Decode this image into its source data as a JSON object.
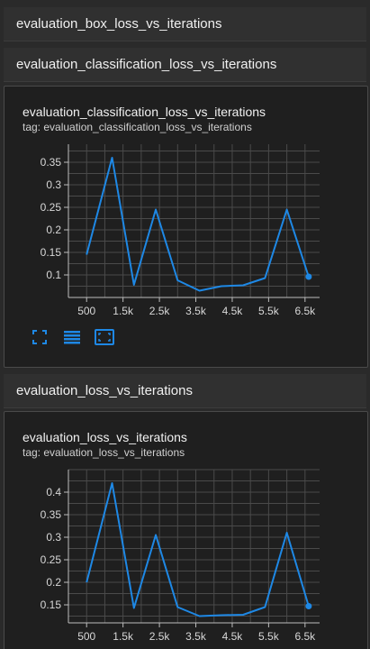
{
  "sections": [
    {
      "label": "evaluation_box_loss_vs_iterations"
    },
    {
      "label": "evaluation_classification_loss_vs_iterations"
    },
    {
      "label": "evaluation_loss_vs_iterations"
    }
  ],
  "cards": [
    {
      "title": "evaluation_classification_loss_vs_iterations",
      "tag": "tag: evaluation_classification_loss_vs_iterations"
    },
    {
      "title": "evaluation_loss_vs_iterations",
      "tag": "tag: evaluation_loss_vs_iterations"
    }
  ],
  "toolbar": {
    "icons": [
      "fullscreen-icon",
      "toggle-log-scale-icon",
      "fit-domain-icon"
    ]
  },
  "colors": {
    "line": "#1e88e5",
    "grid": "#4a4a4a",
    "axis": "#bdbdbd"
  },
  "chart_data": [
    {
      "type": "line",
      "title": "evaluation_classification_loss_vs_iterations",
      "x": [
        500,
        1200,
        1800,
        2400,
        3000,
        3600,
        4200,
        4800,
        5400,
        6000,
        6600
      ],
      "series": [
        {
          "values": [
            0.145,
            0.36,
            0.078,
            0.245,
            0.088,
            0.065,
            0.075,
            0.077,
            0.093,
            0.245,
            0.096
          ]
        }
      ],
      "xlim": [
        0,
        6900
      ],
      "ylim": [
        0.05,
        0.39
      ],
      "xticks": [
        500,
        1500,
        2500,
        3500,
        4500,
        5500,
        6500
      ],
      "xtick_labels": [
        "500",
        "1.5k",
        "2.5k",
        "3.5k",
        "4.5k",
        "5.5k",
        "6.5k"
      ],
      "yticks": [
        0.1,
        0.15,
        0.2,
        0.25,
        0.3,
        0.35
      ],
      "ytick_labels": [
        "0.1",
        "0.15",
        "0.2",
        "0.25",
        "0.3",
        "0.35"
      ],
      "grid": true
    },
    {
      "type": "line",
      "title": "evaluation_loss_vs_iterations",
      "x": [
        500,
        1200,
        1800,
        2400,
        3000,
        3600,
        4200,
        4800,
        5400,
        6000,
        6600
      ],
      "series": [
        {
          "values": [
            0.2,
            0.42,
            0.143,
            0.305,
            0.145,
            0.125,
            0.127,
            0.128,
            0.145,
            0.31,
            0.147
          ]
        }
      ],
      "xlim": [
        0,
        6900
      ],
      "ylim": [
        0.11,
        0.45
      ],
      "xticks": [
        500,
        1500,
        2500,
        3500,
        4500,
        5500,
        6500
      ],
      "xtick_labels": [
        "500",
        "1.5k",
        "2.5k",
        "3.5k",
        "4.5k",
        "5.5k",
        "6.5k"
      ],
      "yticks": [
        0.15,
        0.2,
        0.25,
        0.3,
        0.35,
        0.4
      ],
      "ytick_labels": [
        "0.15",
        "0.2",
        "0.25",
        "0.3",
        "0.35",
        "0.4"
      ],
      "grid": true
    }
  ]
}
